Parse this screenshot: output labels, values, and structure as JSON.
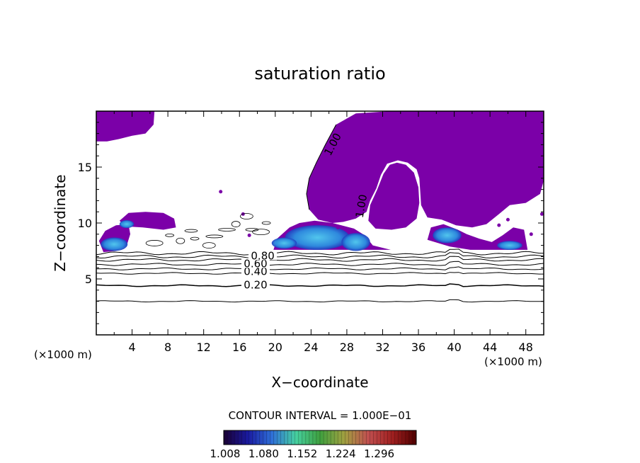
{
  "chart_data": {
    "type": "contour",
    "title": "saturation ratio",
    "xlabel": "X−coordinate",
    "ylabel": "Z−coordinate",
    "x_unit_left": "(×1000 m)",
    "x_unit_right": "(×1000 m)",
    "xlim": [
      0,
      50
    ],
    "ylim": [
      0,
      20
    ],
    "xticks": [
      4,
      8,
      12,
      16,
      20,
      24,
      28,
      32,
      36,
      40,
      44,
      48
    ],
    "yticks": [
      5,
      10,
      15
    ],
    "contour_labels": [
      {
        "text": "0.20",
        "x": 17.8,
        "y": 4.4
      },
      {
        "text": "0.40",
        "x": 17.8,
        "y": 5.6
      },
      {
        "text": "0.60",
        "x": 17.8,
        "y": 6.3
      },
      {
        "text": "0.80",
        "x": 18.6,
        "y": 7.0
      },
      {
        "text": "1.00",
        "x": 26.5,
        "y": 17.0
      },
      {
        "text": "1.00",
        "x": 29.7,
        "y": 11.5
      }
    ],
    "contour_interval_text": "CONTOUR INTERVAL = 1.000E−01",
    "colorbar": {
      "ticks": [
        "1.008",
        "1.080",
        "1.152",
        "1.224",
        "1.296"
      ],
      "colors": [
        "#1a0033",
        "#1a1aa0",
        "#2f6fd8",
        "#46d0a0",
        "#3fa03f",
        "#a0a040",
        "#c05050",
        "#a02020",
        "#500000"
      ]
    },
    "fill_color": "#7b00a8"
  }
}
